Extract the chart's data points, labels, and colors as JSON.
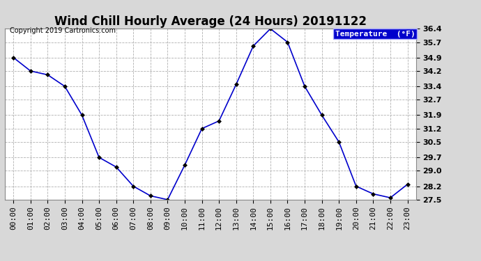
{
  "title": "Wind Chill Hourly Average (24 Hours) 20191122",
  "copyright": "Copyright 2019 Cartronics.com",
  "legend_label": "Temperature  (°F)",
  "hours": [
    "00:00",
    "01:00",
    "02:00",
    "03:00",
    "04:00",
    "05:00",
    "06:00",
    "07:00",
    "08:00",
    "09:00",
    "10:00",
    "11:00",
    "12:00",
    "13:00",
    "14:00",
    "15:00",
    "16:00",
    "17:00",
    "18:00",
    "19:00",
    "20:00",
    "21:00",
    "22:00",
    "23:00"
  ],
  "values": [
    34.9,
    34.2,
    34.0,
    33.4,
    31.9,
    29.7,
    29.2,
    28.2,
    27.7,
    27.5,
    29.3,
    31.2,
    31.6,
    33.5,
    35.5,
    36.4,
    35.7,
    33.4,
    31.9,
    30.5,
    28.2,
    27.8,
    27.6,
    28.3
  ],
  "ylim_min": 27.5,
  "ylim_max": 36.4,
  "yticks": [
    27.5,
    28.2,
    29.0,
    29.7,
    30.5,
    31.2,
    31.9,
    32.7,
    33.4,
    34.2,
    34.9,
    35.7,
    36.4
  ],
  "line_color": "#0000cc",
  "marker_color": "#000000",
  "bg_color": "#d8d8d8",
  "plot_bg_color": "#ffffff",
  "grid_color": "#b0b0b0",
  "title_color": "#000000",
  "legend_bg": "#0000cc",
  "legend_text_color": "#ffffff",
  "title_fontsize": 12,
  "tick_fontsize": 8,
  "copyright_fontsize": 7
}
